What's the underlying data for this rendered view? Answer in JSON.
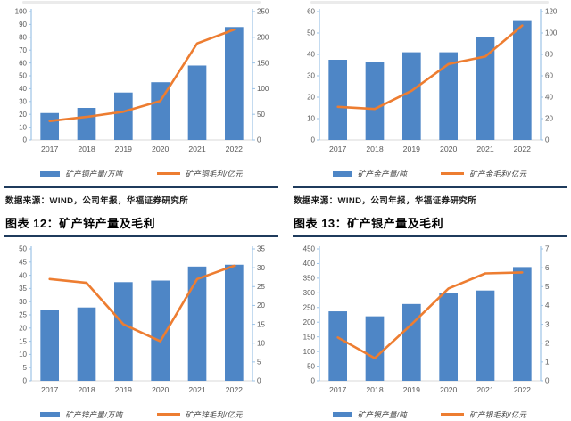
{
  "page": {
    "source_note": "数据来源：WIND，公司年报，华福证券研究所"
  },
  "panels": [
    {
      "source": "数据来源：WIND，公司年报，华福证券研究所"
    },
    {
      "source": "数据来源：WIND，公司年报，华福证券研究所"
    },
    {
      "title": "图表 12：矿产锌产量及毛利"
    },
    {
      "title": "图表 13：矿产银产量及毛利"
    }
  ],
  "colors": {
    "bar": "#4E86C6",
    "line": "#ED7D31",
    "axis": "#9DC3E6",
    "baseline": "#D9D9D9",
    "tick_text": "#595959",
    "rule": "#1F3B5C"
  },
  "chart_data": [
    {
      "type": "bar+line",
      "title": "",
      "categories": [
        "2017",
        "2018",
        "2019",
        "2020",
        "2021",
        "2022"
      ],
      "series": [
        {
          "name": "矿产铜产量/万吨",
          "type": "bar",
          "axis": "left",
          "values": [
            21,
            25,
            37,
            45,
            58,
            88
          ]
        },
        {
          "name": "矿产铜毛利/亿元",
          "type": "line",
          "axis": "right",
          "values": [
            37,
            45,
            55,
            76,
            188,
            215
          ]
        }
      ],
      "left_axis": {
        "min": 0,
        "max": 100,
        "step": 10
      },
      "right_axis": {
        "min": 0,
        "max": 250,
        "step": 50
      },
      "grid": false,
      "legend_position": "bottom"
    },
    {
      "type": "bar+line",
      "title": "",
      "categories": [
        "2017",
        "2018",
        "2019",
        "2020",
        "2021",
        "2022"
      ],
      "series": [
        {
          "name": "矿产金产量/吨",
          "type": "bar",
          "axis": "left",
          "values": [
            37.5,
            36.5,
            41,
            41,
            48,
            56
          ]
        },
        {
          "name": "矿产金毛利/亿元",
          "type": "line",
          "axis": "right",
          "values": [
            31,
            29,
            46,
            71,
            78,
            107
          ]
        }
      ],
      "left_axis": {
        "min": 0,
        "max": 60,
        "step": 10
      },
      "right_axis": {
        "min": 0,
        "max": 120,
        "step": 20
      },
      "grid": false,
      "legend_position": "bottom"
    },
    {
      "type": "bar+line",
      "title": "图表 12：矿产锌产量及毛利",
      "categories": [
        "2017",
        "2018",
        "2019",
        "2020",
        "2021",
        "2022"
      ],
      "series": [
        {
          "name": "矿产锌产量/万吨",
          "type": "bar",
          "axis": "left",
          "values": [
            27,
            27.8,
            37.4,
            38,
            43.3,
            44
          ]
        },
        {
          "name": "矿产锌毛利/亿元",
          "type": "line",
          "axis": "right",
          "values": [
            27,
            26,
            15,
            10.5,
            27,
            30.5
          ]
        }
      ],
      "left_axis": {
        "min": 0,
        "max": 50,
        "step": 5
      },
      "right_axis": {
        "min": 0,
        "max": 35,
        "step": 5
      },
      "grid": false,
      "legend_position": "bottom"
    },
    {
      "type": "bar+line",
      "title": "图表 13：矿产银产量及毛利",
      "categories": [
        "2017",
        "2018",
        "2019",
        "2020",
        "2021",
        "2022"
      ],
      "series": [
        {
          "name": "矿产银产量/吨",
          "type": "bar",
          "axis": "left",
          "values": [
            237,
            220,
            262,
            298,
            308,
            388
          ]
        },
        {
          "name": "矿产银毛利/亿元",
          "type": "line",
          "axis": "right",
          "values": [
            2.3,
            1.2,
            3.0,
            4.9,
            5.7,
            5.75
          ]
        }
      ],
      "left_axis": {
        "min": 0,
        "max": 450,
        "step": 50
      },
      "right_axis": {
        "min": 0,
        "max": 7,
        "step": 1
      },
      "grid": false,
      "legend_position": "bottom"
    }
  ]
}
